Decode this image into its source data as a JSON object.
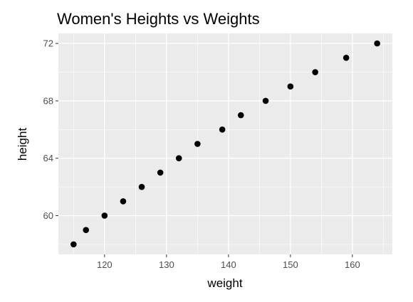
{
  "chart_data": {
    "type": "scatter",
    "title": "Women's Heights vs Weights",
    "xlabel": "weight",
    "ylabel": "height",
    "xlim": [
      112.55,
      166.45
    ],
    "ylim": [
      57.3,
      72.7
    ],
    "x_ticks": [
      120,
      130,
      140,
      150,
      160
    ],
    "y_ticks": [
      60,
      64,
      68,
      72
    ],
    "x_tick_labels": [
      "120",
      "130",
      "140",
      "150",
      "160"
    ],
    "y_tick_labels": [
      "60",
      "64",
      "68",
      "72"
    ],
    "grid": true,
    "legend": "none",
    "colors": {
      "panel_background": "#ebebeb",
      "grid_major": "#ffffff",
      "point": "#000000",
      "tick_label": "#4d4d4d"
    },
    "series": [
      {
        "points": [
          {
            "x": 115,
            "y": 58
          },
          {
            "x": 117,
            "y": 59
          },
          {
            "x": 120,
            "y": 60
          },
          {
            "x": 123,
            "y": 61
          },
          {
            "x": 126,
            "y": 62
          },
          {
            "x": 129,
            "y": 63
          },
          {
            "x": 132,
            "y": 64
          },
          {
            "x": 135,
            "y": 65
          },
          {
            "x": 139,
            "y": 66
          },
          {
            "x": 142,
            "y": 67
          },
          {
            "x": 146,
            "y": 68
          },
          {
            "x": 150,
            "y": 69
          },
          {
            "x": 154,
            "y": 70
          },
          {
            "x": 159,
            "y": 71
          },
          {
            "x": 164,
            "y": 72
          }
        ]
      }
    ]
  }
}
